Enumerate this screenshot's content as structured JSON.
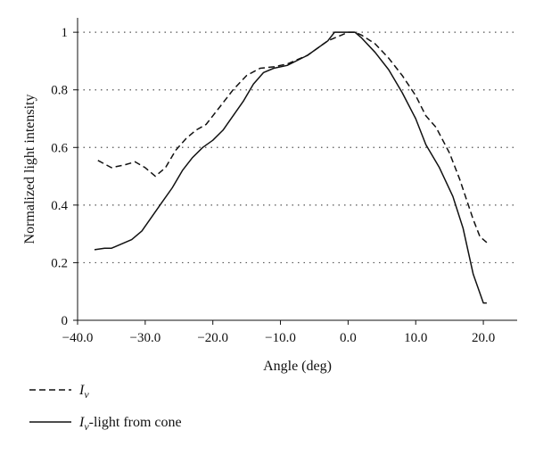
{
  "chart_data": {
    "type": "line",
    "title": "",
    "xlabel": "Angle (deg)",
    "ylabel": "Normalized light intensity",
    "xlim": [
      -40,
      25
    ],
    "ylim": [
      0,
      1.05
    ],
    "x_ticks": [
      -40,
      -30,
      -20,
      -10,
      0,
      10,
      20
    ],
    "x_tick_labels": [
      "−40.0",
      "−30.0",
      "−20.0",
      "−10.0",
      "0.0",
      "10.0",
      "20.0"
    ],
    "y_ticks": [
      0,
      0.2,
      0.4,
      0.6,
      0.8,
      1
    ],
    "y_tick_labels": [
      "0",
      "0.2",
      "0.4",
      "0.6",
      "0.8",
      "1"
    ],
    "grid": "horizontal dotted",
    "legend_position": "bottom-left, below plot",
    "series": [
      {
        "name": "Iv",
        "legend_main": "I",
        "legend_sub": "v",
        "legend_suffix": "",
        "style": "dashed",
        "color": "#111111",
        "points": [
          [
            -37,
            0.555
          ],
          [
            -35,
            0.53
          ],
          [
            -33,
            0.54
          ],
          [
            -31.5,
            0.55
          ],
          [
            -30,
            0.53
          ],
          [
            -28.5,
            0.5
          ],
          [
            -27,
            0.53
          ],
          [
            -25.5,
            0.59
          ],
          [
            -24,
            0.63
          ],
          [
            -22.5,
            0.66
          ],
          [
            -21,
            0.68
          ],
          [
            -19,
            0.74
          ],
          [
            -17,
            0.8
          ],
          [
            -15,
            0.85
          ],
          [
            -13,
            0.875
          ],
          [
            -11,
            0.88
          ],
          [
            -9,
            0.89
          ],
          [
            -6,
            0.92
          ],
          [
            -3,
            0.97
          ],
          [
            -1,
            0.99
          ],
          [
            0,
            1.0
          ],
          [
            1,
            1.0
          ],
          [
            2,
            0.99
          ],
          [
            4,
            0.96
          ],
          [
            6,
            0.91
          ],
          [
            8,
            0.85
          ],
          [
            10,
            0.78
          ],
          [
            11.5,
            0.71
          ],
          [
            13,
            0.67
          ],
          [
            15,
            0.58
          ],
          [
            16.5,
            0.49
          ],
          [
            17.5,
            0.42
          ],
          [
            18.5,
            0.35
          ],
          [
            19.5,
            0.29
          ],
          [
            20.5,
            0.27
          ]
        ]
      },
      {
        "name": "Iv-light from cone",
        "legend_main": "I",
        "legend_sub": "v",
        "legend_suffix": "-light from cone",
        "style": "solid",
        "color": "#111111",
        "points": [
          [
            -37.5,
            0.245
          ],
          [
            -36,
            0.25
          ],
          [
            -35,
            0.25
          ],
          [
            -33,
            0.27
          ],
          [
            -32,
            0.28
          ],
          [
            -30.5,
            0.31
          ],
          [
            -29,
            0.36
          ],
          [
            -27.5,
            0.41
          ],
          [
            -26,
            0.46
          ],
          [
            -24.5,
            0.52
          ],
          [
            -23,
            0.565
          ],
          [
            -21.5,
            0.6
          ],
          [
            -20,
            0.625
          ],
          [
            -18.5,
            0.66
          ],
          [
            -17,
            0.71
          ],
          [
            -15.5,
            0.76
          ],
          [
            -14,
            0.82
          ],
          [
            -12.5,
            0.86
          ],
          [
            -11,
            0.875
          ],
          [
            -9,
            0.885
          ],
          [
            -6,
            0.92
          ],
          [
            -3,
            0.97
          ],
          [
            -2,
            1.0
          ],
          [
            1,
            1.0
          ],
          [
            2,
            0.98
          ],
          [
            4,
            0.93
          ],
          [
            6,
            0.87
          ],
          [
            8,
            0.79
          ],
          [
            10,
            0.7
          ],
          [
            11.5,
            0.61
          ],
          [
            13.5,
            0.53
          ],
          [
            15.5,
            0.43
          ],
          [
            17,
            0.32
          ],
          [
            18.5,
            0.16
          ],
          [
            20,
            0.06
          ],
          [
            20.5,
            0.06
          ]
        ]
      }
    ]
  }
}
